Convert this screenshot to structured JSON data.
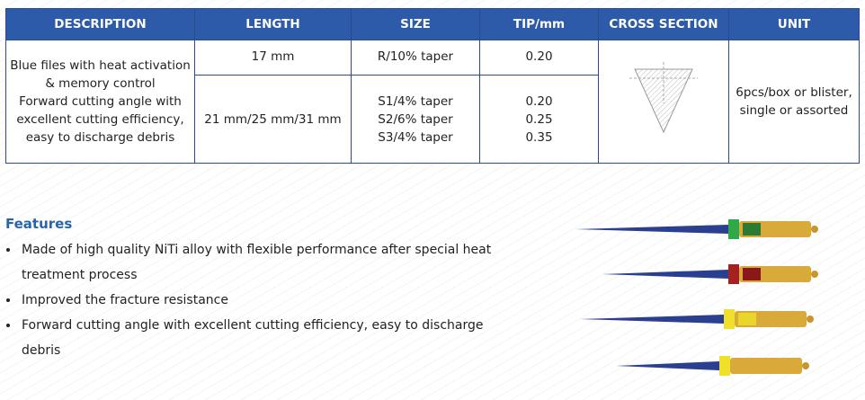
{
  "table": {
    "header": [
      "DESCRIPTION",
      "LENGTH",
      "SIZE",
      "TIP/mm",
      "CROSS SECTION",
      "UNIT"
    ],
    "description": [
      "Blue files with heat activation",
      "& memory control",
      "Forward cutting angle with",
      "excellent cutting efficiency,",
      "easy to discharge debris"
    ],
    "rows": [
      {
        "length": "17 mm",
        "size": [
          "R/10% taper"
        ],
        "tip": [
          "0.20"
        ]
      },
      {
        "length": "21 mm/25 mm/31 mm",
        "size": [
          "S1/4% taper",
          "S2/6% taper",
          "S3/4% taper"
        ],
        "tip": [
          "0.20",
          "0.25",
          "0.35"
        ]
      }
    ],
    "unit": [
      "6pcs/box or blister,",
      "single or assorted"
    ]
  },
  "features": {
    "title": "Features",
    "items": [
      "Made of high quality NiTi alloy with flexible performance after special heat treatment process",
      "Improved the fracture resistance",
      "Forward cutting angle with excellent cutting efficiency, easy to discharge debris"
    ]
  }
}
